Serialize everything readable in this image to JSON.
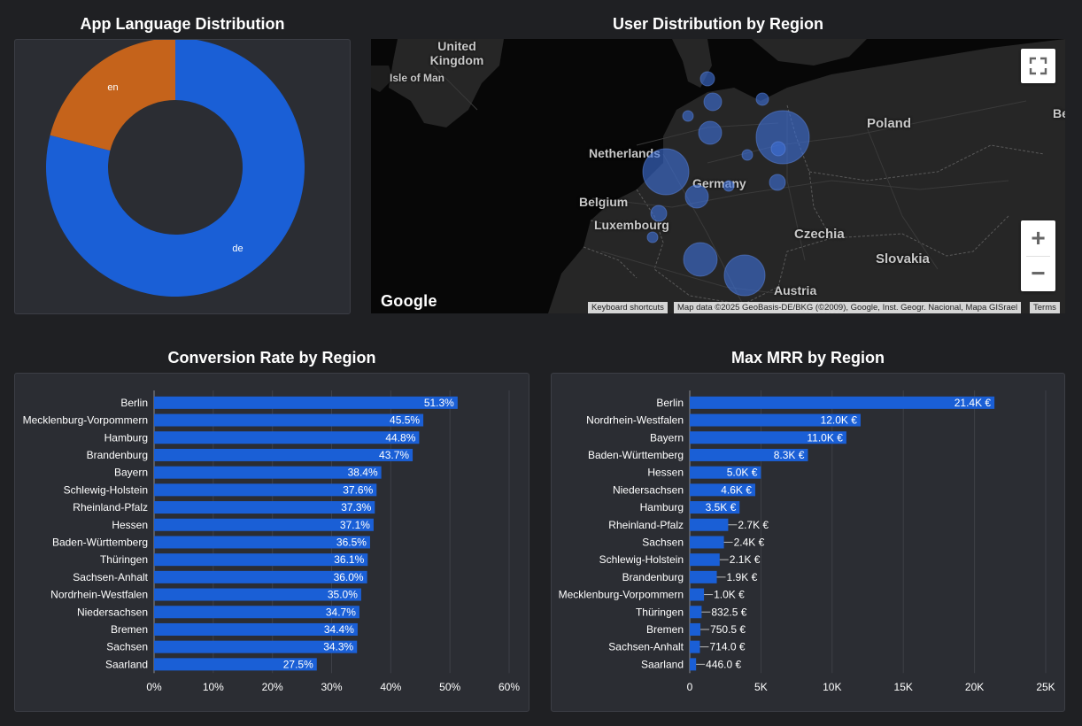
{
  "titles": {
    "language": "App Language Distribution",
    "map": "User Distribution by Region",
    "conversion": "Conversion Rate by Region",
    "mrr": "Max MRR by Region"
  },
  "map": {
    "labels": [
      {
        "id": "uk",
        "text": "United Kingdom"
      },
      {
        "id": "isle-of-man",
        "text": "Isle of Man"
      },
      {
        "id": "netherlands",
        "text": "Netherlands"
      },
      {
        "id": "germany",
        "text": "Germany"
      },
      {
        "id": "belgium",
        "text": "Belgium"
      },
      {
        "id": "luxembourg",
        "text": "Luxembourg"
      },
      {
        "id": "poland",
        "text": "Poland"
      },
      {
        "id": "czechia",
        "text": "Czechia"
      },
      {
        "id": "slovakia",
        "text": "Slovakia"
      },
      {
        "id": "austria",
        "text": "Austria"
      },
      {
        "id": "be-partial",
        "text": "Be"
      }
    ],
    "google_logo": "Google",
    "keyboard_shortcuts": "Keyboard shortcuts",
    "map_data": "Map data ©2025 GeoBasis-DE/BKG (©2009), Google, Inst. Geogr. Nacional, Mapa GISrael",
    "terms": "Terms",
    "zoom_in": "+",
    "zoom_out": "−",
    "bubble_color": "#3d6fd6"
  },
  "chart_data": [
    {
      "type": "pie",
      "donut": true,
      "title": "App Language Distribution",
      "categories": [
        "de",
        "en"
      ],
      "values": [
        79,
        21
      ],
      "colors": [
        "#1a5fd6",
        "#c5631b"
      ]
    },
    {
      "type": "bar",
      "orientation": "horizontal",
      "title": "Conversion Rate by Region",
      "categories": [
        "Berlin",
        "Mecklenburg-Vorpommern",
        "Hamburg",
        "Brandenburg",
        "Bayern",
        "Schlewig-Holstein",
        "Rheinland-Pfalz",
        "Hessen",
        "Baden-Württemberg",
        "Thüringen",
        "Sachsen-Anhalt",
        "Nordrhein-Westfalen",
        "Niedersachsen",
        "Bremen",
        "Sachsen",
        "Saarland"
      ],
      "values": [
        51.3,
        45.5,
        44.8,
        43.7,
        38.4,
        37.6,
        37.3,
        37.1,
        36.5,
        36.1,
        36.0,
        35.0,
        34.7,
        34.4,
        34.3,
        27.5
      ],
      "labels": [
        "51.3%",
        "45.5%",
        "44.8%",
        "43.7%",
        "38.4%",
        "37.6%",
        "37.3%",
        "37.1%",
        "36.5%",
        "36.1%",
        "36.0%",
        "35.0%",
        "34.7%",
        "34.4%",
        "34.3%",
        "27.5%"
      ],
      "xlim": [
        0,
        60
      ],
      "ticks": [
        0,
        10,
        20,
        30,
        40,
        50,
        60
      ],
      "tick_labels": [
        "0%",
        "10%",
        "20%",
        "30%",
        "40%",
        "50%",
        "60%"
      ],
      "color": "#1a5fd6",
      "grid": true
    },
    {
      "type": "bar",
      "orientation": "horizontal",
      "title": "Max MRR by Region",
      "categories": [
        "Berlin",
        "Nordrhein-Westfalen",
        "Bayern",
        "Baden-Württemberg",
        "Hessen",
        "Niedersachsen",
        "Hamburg",
        "Rheinland-Pfalz",
        "Sachsen",
        "Schlewig-Holstein",
        "Brandenburg",
        "Mecklenburg-Vorpommern",
        "Thüringen",
        "Bremen",
        "Sachsen-Anhalt",
        "Saarland"
      ],
      "values": [
        21400,
        12000,
        11000,
        8300,
        5000,
        4600,
        3500,
        2700,
        2400,
        2100,
        1900,
        1000,
        832.5,
        750.5,
        714.0,
        446.0
      ],
      "labels": [
        "21.4K €",
        "12.0K €",
        "11.0K €",
        "8.3K €",
        "5.0K €",
        "4.6K €",
        "3.5K €",
        "2.7K €",
        "2.4K €",
        "2.1K €",
        "1.9K €",
        "1.0K €",
        "832.5 €",
        "750.5 €",
        "714.0 €",
        "446.0 €"
      ],
      "xlim": [
        0,
        25000
      ],
      "ticks": [
        0,
        5000,
        10000,
        15000,
        20000,
        25000
      ],
      "tick_labels": [
        "0",
        "5K",
        "10K",
        "15K",
        "20K",
        "25K"
      ],
      "color": "#1a5fd6",
      "grid": true
    }
  ]
}
